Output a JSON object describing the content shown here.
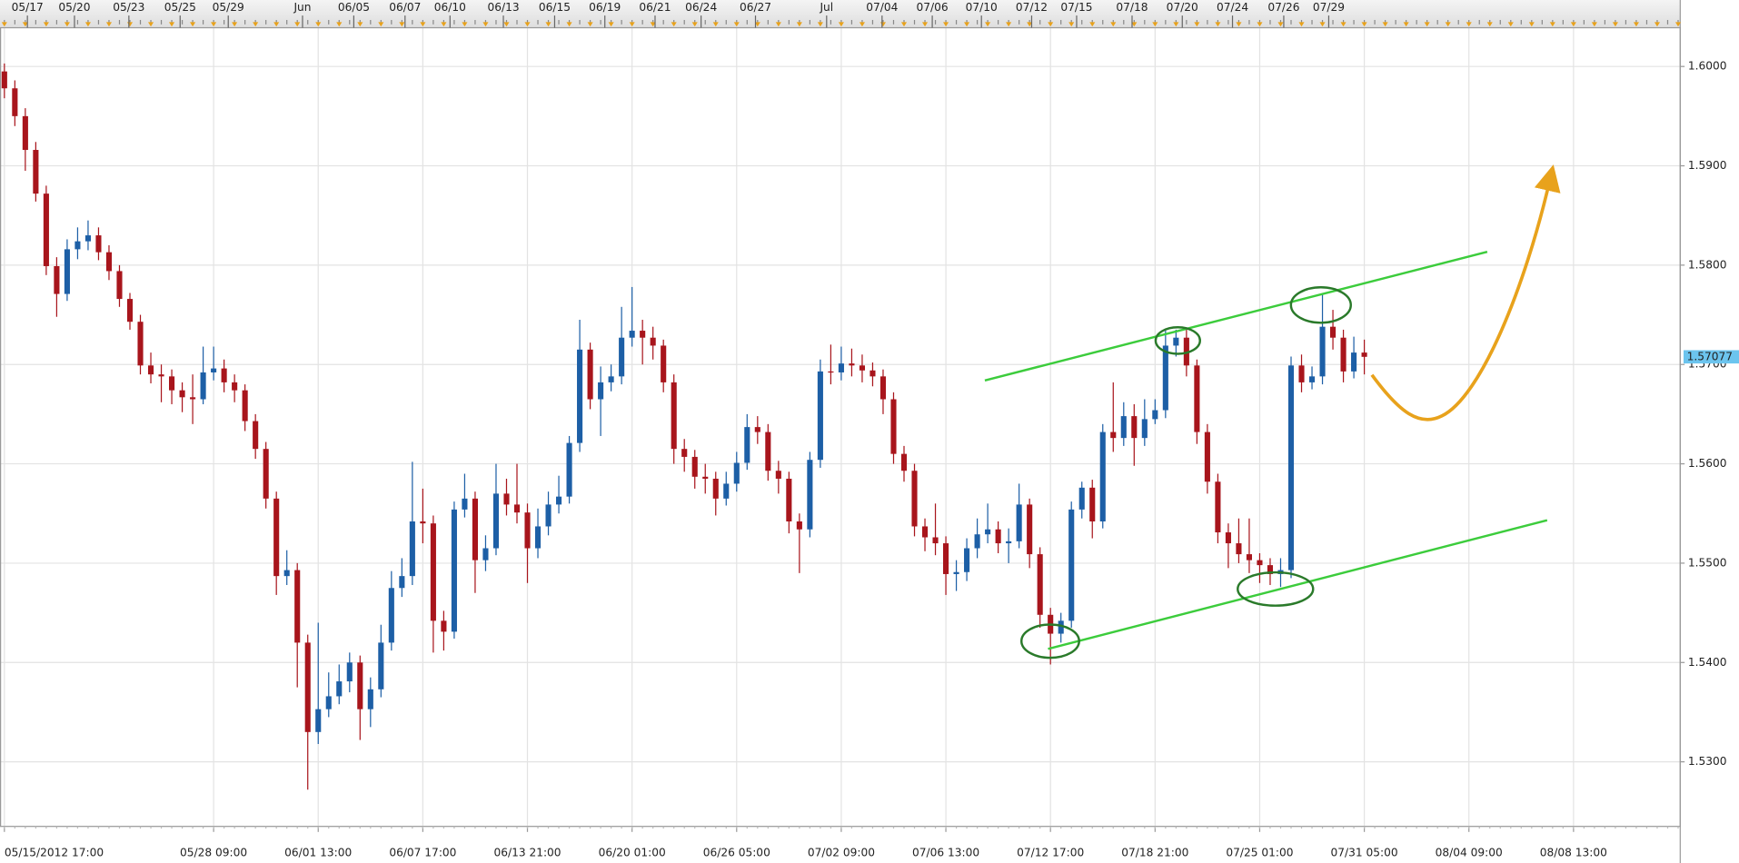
{
  "chart_data": {
    "type": "candlestick",
    "up_color": "#1d5fa6",
    "down_color": "#a8151c",
    "last_price_color": "#6cc4ee",
    "grid": true,
    "ylim": [
      1.5235,
      1.6039
    ],
    "yticks": [
      {
        "value": 1.53,
        "label": "1.5300"
      },
      {
        "value": 1.54,
        "label": "1.5400"
      },
      {
        "value": 1.55,
        "label": "1.5500"
      },
      {
        "value": 1.56,
        "label": "1.5600"
      },
      {
        "value": 1.57,
        "label": "1.5700"
      },
      {
        "value": 1.58,
        "label": "1.5800"
      },
      {
        "value": 1.59,
        "label": "1.5900"
      },
      {
        "value": 1.6,
        "label": "1.6000"
      }
    ],
    "xlim": [
      -0.42,
      160.2
    ],
    "xticks": [
      {
        "value": 0,
        "label": "05/15/2012 17:00"
      },
      {
        "value": 20,
        "label": "05/28 09:00"
      },
      {
        "value": 30,
        "label": "06/01 13:00"
      },
      {
        "value": 40,
        "label": "06/07 17:00"
      },
      {
        "value": 50,
        "label": "06/13 21:00"
      },
      {
        "value": 60,
        "label": "06/20 01:00"
      },
      {
        "value": 70,
        "label": "06/26 05:00"
      },
      {
        "value": 80,
        "label": "07/02 09:00"
      },
      {
        "value": 90,
        "label": "07/06 13:00"
      },
      {
        "value": 100,
        "label": "07/12 17:00"
      },
      {
        "value": 110,
        "label": "07/18 21:00"
      },
      {
        "value": 120,
        "label": "07/25 01:00"
      },
      {
        "value": 130,
        "label": "07/31 05:00"
      },
      {
        "value": 140,
        "label": "08/04 09:00"
      },
      {
        "value": 150,
        "label": "08/08 13:00"
      }
    ],
    "top_ticks": [
      {
        "value": 2.2,
        "label": "05/17"
      },
      {
        "value": 6.7,
        "label": "05/20"
      },
      {
        "value": 11.9,
        "label": "05/23"
      },
      {
        "value": 16.8,
        "label": "05/25"
      },
      {
        "value": 21.4,
        "label": "05/29"
      },
      {
        "value": 28.5,
        "label": "Jun"
      },
      {
        "value": 33.4,
        "label": "06/05"
      },
      {
        "value": 38.3,
        "label": "06/07"
      },
      {
        "value": 42.6,
        "label": "06/10"
      },
      {
        "value": 47.7,
        "label": "06/13"
      },
      {
        "value": 52.6,
        "label": "06/15"
      },
      {
        "value": 57.4,
        "label": "06/19"
      },
      {
        "value": 62.2,
        "label": "06/21"
      },
      {
        "value": 66.6,
        "label": "06/24"
      },
      {
        "value": 71.8,
        "label": "06/27"
      },
      {
        "value": 78.6,
        "label": "Jul"
      },
      {
        "value": 83.9,
        "label": "07/04"
      },
      {
        "value": 88.7,
        "label": "07/06"
      },
      {
        "value": 93.4,
        "label": "07/10"
      },
      {
        "value": 98.2,
        "label": "07/12"
      },
      {
        "value": 102.5,
        "label": "07/15"
      },
      {
        "value": 107.8,
        "label": "07/18"
      },
      {
        "value": 112.6,
        "label": "07/20"
      },
      {
        "value": 117.4,
        "label": "07/24"
      },
      {
        "value": 122.3,
        "label": "07/26"
      },
      {
        "value": 126.6,
        "label": "07/29"
      }
    ],
    "open": [
      1.5995,
      1.5978,
      1.595,
      1.5916,
      1.5872,
      1.5799,
      1.5771,
      1.5816,
      1.5824,
      1.583,
      1.5813,
      1.5794,
      1.5766,
      1.5743,
      1.5699,
      1.569,
      1.5688,
      1.5674,
      1.5667,
      1.5665,
      1.5692,
      1.5696,
      1.5682,
      1.5674,
      1.5643,
      1.5615,
      1.5565,
      1.5487,
      1.5493,
      1.542,
      1.533,
      1.5353,
      1.5366,
      1.5381,
      1.54,
      1.5353,
      1.5373,
      1.542,
      1.5475,
      1.5487,
      1.5542,
      1.554,
      1.5442,
      1.5431,
      1.5554,
      1.5565,
      1.5503,
      1.5515,
      1.557,
      1.5559,
      1.5551,
      1.5515,
      1.5537,
      1.5559,
      1.5567,
      1.5621,
      1.5715,
      1.5665,
      1.5682,
      1.5688,
      1.5727,
      1.5734,
      1.5727,
      1.5719,
      1.5682,
      1.5615,
      1.5607,
      1.5587,
      1.5585,
      1.5565,
      1.558,
      1.5601,
      1.5637,
      1.5632,
      1.5593,
      1.5585,
      1.5542,
      1.5534,
      1.5604,
      1.5693,
      1.5692,
      1.5701,
      1.5699,
      1.5694,
      1.5688,
      1.5665,
      1.561,
      1.5593,
      1.5537,
      1.5526,
      1.552,
      1.5489,
      1.5491,
      1.5515,
      1.5529,
      1.5534,
      1.552,
      1.5522,
      1.5559,
      1.5509,
      1.5448,
      1.5429,
      1.5442,
      1.5554,
      1.5576,
      1.5542,
      1.5632,
      1.5626,
      1.5648,
      1.5626,
      1.5645,
      1.5654,
      1.5719,
      1.5727,
      1.5699,
      1.5632,
      1.5582,
      1.5531,
      1.552,
      1.5509,
      1.5503,
      1.5498,
      1.5489,
      1.5493,
      1.5699,
      1.5682,
      1.5688,
      1.5738,
      1.5727,
      1.5693,
      1.5712
    ],
    "high": [
      1.6003,
      1.5986,
      1.5958,
      1.5924,
      1.588,
      1.5808,
      1.5826,
      1.5838,
      1.5845,
      1.5838,
      1.582,
      1.58,
      1.5772,
      1.575,
      1.5712,
      1.57,
      1.5695,
      1.5682,
      1.569,
      1.5718,
      1.5718,
      1.5705,
      1.569,
      1.568,
      1.565,
      1.5622,
      1.5572,
      1.5513,
      1.55,
      1.5428,
      1.544,
      1.539,
      1.5398,
      1.541,
      1.5407,
      1.5385,
      1.5438,
      1.5492,
      1.5505,
      1.5602,
      1.5575,
      1.5548,
      1.5452,
      1.5562,
      1.559,
      1.5572,
      1.5528,
      1.56,
      1.5585,
      1.56,
      1.556,
      1.5555,
      1.5572,
      1.5588,
      1.5628,
      1.5745,
      1.5722,
      1.5698,
      1.57,
      1.5758,
      1.5778,
      1.5745,
      1.5738,
      1.5725,
      1.569,
      1.5625,
      1.5614,
      1.56,
      1.5592,
      1.5592,
      1.5612,
      1.565,
      1.5648,
      1.564,
      1.5603,
      1.5592,
      1.555,
      1.5612,
      1.5705,
      1.572,
      1.5718,
      1.5716,
      1.571,
      1.5702,
      1.5695,
      1.5672,
      1.5618,
      1.56,
      1.5545,
      1.556,
      1.5527,
      1.5503,
      1.5525,
      1.5545,
      1.556,
      1.5542,
      1.5535,
      1.558,
      1.5565,
      1.5516,
      1.5455,
      1.545,
      1.5562,
      1.5582,
      1.5584,
      1.564,
      1.5682,
      1.5662,
      1.566,
      1.5665,
      1.5665,
      1.5734,
      1.5735,
      1.5735,
      1.5705,
      1.564,
      1.559,
      1.554,
      1.5545,
      1.5545,
      1.551,
      1.5505,
      1.5505,
      1.5708,
      1.571,
      1.5698,
      1.5771,
      1.5755,
      1.5735,
      1.5728,
      1.5725
    ],
    "low": [
      1.5968,
      1.594,
      1.5895,
      1.5864,
      1.579,
      1.5748,
      1.5764,
      1.5806,
      1.5815,
      1.5805,
      1.5785,
      1.5758,
      1.5735,
      1.569,
      1.5681,
      1.5662,
      1.566,
      1.5652,
      1.564,
      1.566,
      1.5684,
      1.5672,
      1.5662,
      1.5633,
      1.5605,
      1.5555,
      1.5468,
      1.5478,
      1.5375,
      1.5272,
      1.5318,
      1.5345,
      1.5358,
      1.537,
      1.5322,
      1.5335,
      1.5365,
      1.5412,
      1.5466,
      1.5478,
      1.552,
      1.541,
      1.5412,
      1.5424,
      1.5546,
      1.547,
      1.5492,
      1.5508,
      1.5548,
      1.554,
      1.548,
      1.5505,
      1.5528,
      1.555,
      1.556,
      1.5612,
      1.5655,
      1.5628,
      1.5673,
      1.568,
      1.5718,
      1.57,
      1.5705,
      1.5672,
      1.56,
      1.5592,
      1.5575,
      1.557,
      1.5548,
      1.5558,
      1.5572,
      1.5594,
      1.562,
      1.5583,
      1.557,
      1.553,
      1.549,
      1.5526,
      1.5596,
      1.568,
      1.5684,
      1.5688,
      1.5682,
      1.5678,
      1.565,
      1.56,
      1.5582,
      1.5527,
      1.5512,
      1.5508,
      1.5468,
      1.5472,
      1.5482,
      1.5505,
      1.552,
      1.551,
      1.55,
      1.5515,
      1.5495,
      1.5435,
      1.5398,
      1.542,
      1.5435,
      1.5545,
      1.5525,
      1.5535,
      1.5612,
      1.5618,
      1.5598,
      1.5618,
      1.564,
      1.5646,
      1.5708,
      1.5688,
      1.562,
      1.557,
      1.552,
      1.5495,
      1.55,
      1.549,
      1.548,
      1.5478,
      1.5476,
      1.5485,
      1.5672,
      1.5675,
      1.568,
      1.5715,
      1.5682,
      1.5686,
      1.569
    ],
    "close": [
      1.5978,
      1.595,
      1.5916,
      1.5872,
      1.5799,
      1.5771,
      1.5816,
      1.5824,
      1.583,
      1.5813,
      1.5794,
      1.5766,
      1.5743,
      1.5699,
      1.569,
      1.5688,
      1.5674,
      1.5667,
      1.5665,
      1.5692,
      1.5696,
      1.5682,
      1.5674,
      1.5643,
      1.5615,
      1.5565,
      1.5487,
      1.5493,
      1.542,
      1.533,
      1.5353,
      1.5366,
      1.5381,
      1.54,
      1.5353,
      1.5373,
      1.542,
      1.5475,
      1.5487,
      1.5542,
      1.554,
      1.5442,
      1.5431,
      1.5554,
      1.5565,
      1.5503,
      1.5515,
      1.557,
      1.5559,
      1.5551,
      1.5515,
      1.5537,
      1.5559,
      1.5567,
      1.5621,
      1.5715,
      1.5665,
      1.5682,
      1.5688,
      1.5727,
      1.5734,
      1.5727,
      1.5719,
      1.5682,
      1.5615,
      1.5607,
      1.5587,
      1.5585,
      1.5565,
      1.558,
      1.5601,
      1.5637,
      1.5632,
      1.5593,
      1.5585,
      1.5542,
      1.5534,
      1.5604,
      1.5693,
      1.5692,
      1.5701,
      1.5699,
      1.5694,
      1.5688,
      1.5665,
      1.561,
      1.5593,
      1.5537,
      1.5526,
      1.552,
      1.5489,
      1.5491,
      1.5515,
      1.5529,
      1.5534,
      1.552,
      1.5522,
      1.5559,
      1.5509,
      1.5448,
      1.5429,
      1.5442,
      1.5554,
      1.5576,
      1.5542,
      1.5632,
      1.5626,
      1.5648,
      1.5626,
      1.5645,
      1.5654,
      1.5719,
      1.5727,
      1.5699,
      1.5632,
      1.5582,
      1.5531,
      1.552,
      1.5509,
      1.5503,
      1.5498,
      1.5489,
      1.5493,
      1.5699,
      1.5682,
      1.5688,
      1.5738,
      1.5727,
      1.5693,
      1.5712,
      1.57077
    ]
  }
}
